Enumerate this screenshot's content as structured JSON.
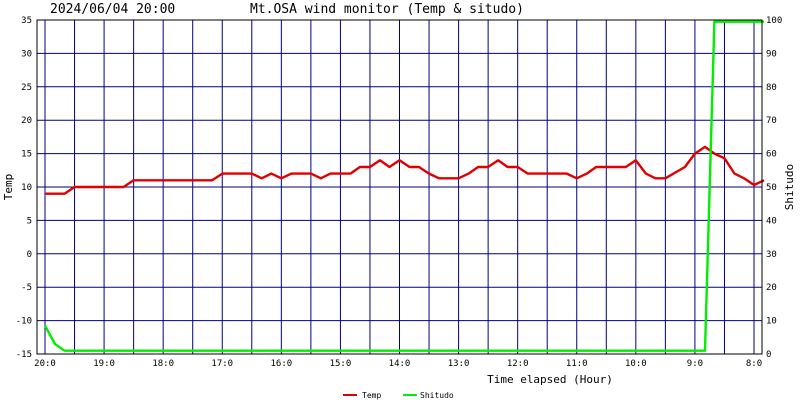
{
  "chart_data": {
    "type": "line",
    "timestamp": "2024/06/04 20:00",
    "title": "Mt.OSA wind monitor (Temp & situdo)",
    "xlabel": "Time elapsed (Hour)",
    "ylabel_left": "Temp",
    "ylabel_right": "Shitudo",
    "ylim_left": [
      -15,
      35
    ],
    "ylim_right": [
      0,
      100
    ],
    "yticks_left": [
      "35",
      "30",
      "25",
      "20",
      "15",
      "10",
      "5",
      "0",
      "-5",
      "-10",
      "-15"
    ],
    "yticks_right": [
      "100",
      "90",
      "80",
      "70",
      "60",
      "50",
      "40",
      "30",
      "20",
      "10",
      "0"
    ],
    "xticks": [
      "20:0",
      "19:0",
      "18:0",
      "17:0",
      "16:0",
      "15:0",
      "14:0",
      "13:0",
      "12:0",
      "11:0",
      "10:0",
      "9:0",
      "8:0"
    ],
    "grid": true,
    "series": [
      {
        "name": "Temp",
        "axis": "left",
        "color": "#e00000",
        "points": [
          [
            0,
            9
          ],
          [
            0.33,
            9
          ],
          [
            0.5,
            10
          ],
          [
            1,
            10
          ],
          [
            1.33,
            10
          ],
          [
            1.5,
            11
          ],
          [
            2,
            11
          ],
          [
            2.5,
            11
          ],
          [
            2.83,
            11
          ],
          [
            3,
            12
          ],
          [
            3.5,
            12
          ],
          [
            3.67,
            11.3
          ],
          [
            3.83,
            12
          ],
          [
            4,
            11.3
          ],
          [
            4.17,
            12
          ],
          [
            4.5,
            12
          ],
          [
            4.67,
            11.3
          ],
          [
            4.83,
            12
          ],
          [
            5.17,
            12
          ],
          [
            5.33,
            13
          ],
          [
            5.5,
            13
          ],
          [
            5.67,
            14
          ],
          [
            5.83,
            13
          ],
          [
            6,
            14
          ],
          [
            6.17,
            13
          ],
          [
            6.33,
            13
          ],
          [
            6.5,
            12
          ],
          [
            6.67,
            11.3
          ],
          [
            7,
            11.3
          ],
          [
            7.17,
            12
          ],
          [
            7.33,
            13
          ],
          [
            7.5,
            13
          ],
          [
            7.67,
            14
          ],
          [
            7.83,
            13
          ],
          [
            8,
            13
          ],
          [
            8.17,
            12
          ],
          [
            8.83,
            12
          ],
          [
            9,
            11.3
          ],
          [
            9.17,
            12
          ],
          [
            9.33,
            13
          ],
          [
            9.83,
            13
          ],
          [
            10,
            14
          ],
          [
            10.17,
            12
          ],
          [
            10.33,
            11.3
          ],
          [
            10.5,
            11.3
          ],
          [
            10.83,
            13
          ],
          [
            11,
            15
          ],
          [
            11.17,
            16
          ],
          [
            11.33,
            15
          ],
          [
            11.5,
            14.3
          ],
          [
            11.67,
            12
          ],
          [
            11.83,
            11.3
          ],
          [
            12,
            10.3
          ],
          [
            12.17,
            11
          ]
        ]
      },
      {
        "name": "Shitudo",
        "axis": "right",
        "color": "#00ee00",
        "points": [
          [
            0,
            8.5
          ],
          [
            0.17,
            3
          ],
          [
            0.33,
            1
          ],
          [
            0.5,
            1
          ],
          [
            11.17,
            1
          ],
          [
            11.33,
            99.5
          ],
          [
            12.17,
            99.5
          ]
        ]
      }
    ]
  }
}
